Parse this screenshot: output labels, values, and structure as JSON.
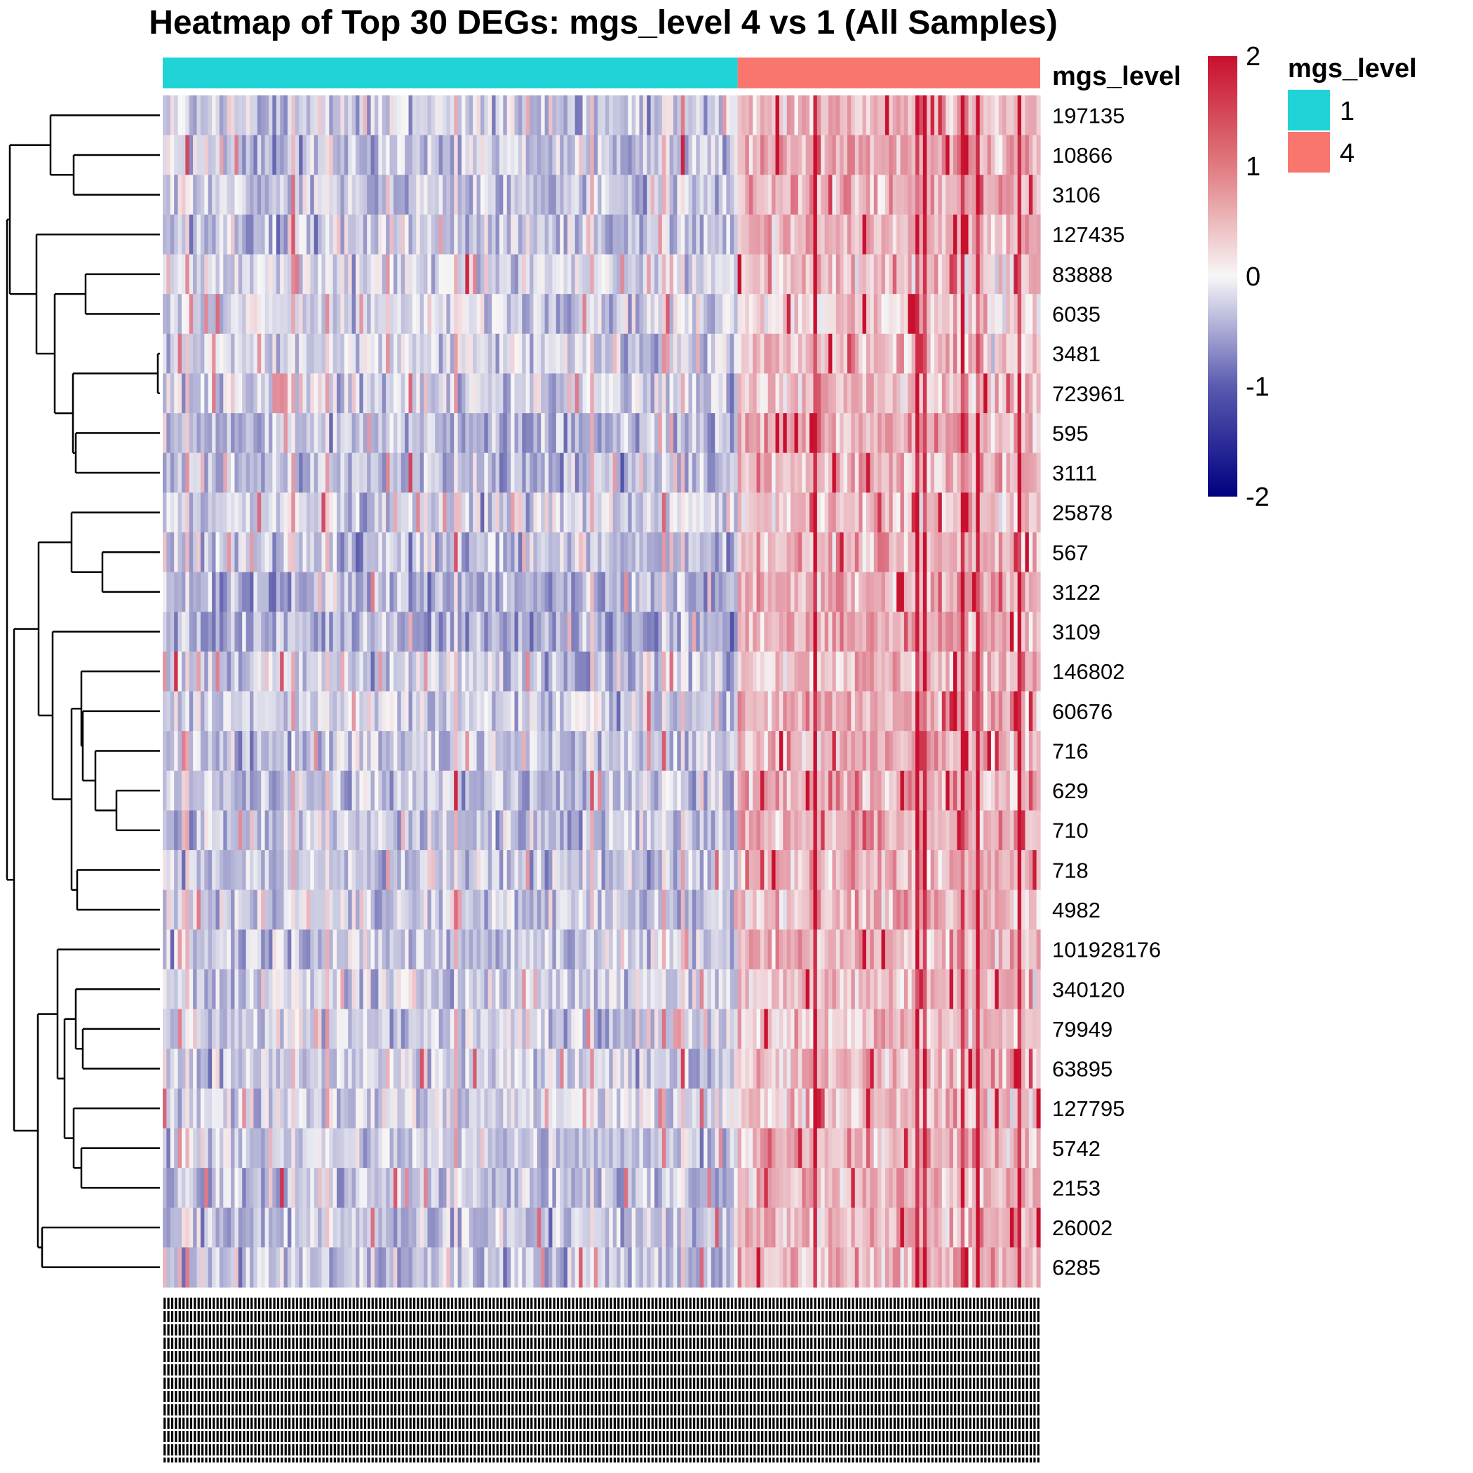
{
  "chart_data": {
    "type": "heatmap",
    "title": "Heatmap of Top 30 DEGs: mgs_level 4 vs 1 (All Samples)",
    "rows": [
      "197135",
      "10866",
      "3106",
      "127435",
      "83888",
      "6035",
      "3481",
      "723961",
      "595",
      "3111",
      "25878",
      "567",
      "3122",
      "3109",
      "146802",
      "60676",
      "716",
      "629",
      "710",
      "718",
      "4982",
      "101928176",
      "340120",
      "79949",
      "63895",
      "127795",
      "5742",
      "2153",
      "26002",
      "6285"
    ],
    "annotation": {
      "name": "mgs_level",
      "groups": [
        {
          "label": "1",
          "color": "#1FD3D6",
          "n_columns": 152
        },
        {
          "label": "4",
          "color": "#F8766D",
          "n_columns": 80
        }
      ]
    },
    "n_columns": 232,
    "column_labels_note": "",
    "color_scale": {
      "min": -2,
      "max": 2,
      "low_color": "#000080",
      "mid_color": "#F7F7F7",
      "high_color": "#C8102E",
      "ticks": [
        "2",
        "1",
        "0",
        "-1",
        "-2"
      ]
    },
    "row_dendrogram": true,
    "group_means": {
      "197135": [
        -0.35,
        0.55
      ],
      "10866": [
        -0.4,
        0.6
      ],
      "3106": [
        -0.4,
        0.55
      ],
      "127435": [
        -0.4,
        0.6
      ],
      "83888": [
        -0.2,
        0.4
      ],
      "6035": [
        -0.25,
        0.35
      ],
      "3481": [
        -0.3,
        0.45
      ],
      "723961": [
        -0.3,
        0.45
      ],
      "595": [
        -0.5,
        0.65
      ],
      "3111": [
        -0.45,
        0.55
      ],
      "25878": [
        -0.25,
        0.45
      ],
      "567": [
        -0.45,
        0.6
      ],
      "3122": [
        -0.55,
        0.65
      ],
      "3109": [
        -0.6,
        0.7
      ],
      "146802": [
        -0.35,
        0.55
      ],
      "60676": [
        -0.35,
        0.55
      ],
      "716": [
        -0.4,
        0.6
      ],
      "629": [
        -0.4,
        0.6
      ],
      "710": [
        -0.4,
        0.6
      ],
      "718": [
        -0.4,
        0.55
      ],
      "4982": [
        -0.35,
        0.55
      ],
      "101928176": [
        -0.35,
        0.55
      ],
      "340120": [
        -0.3,
        0.5
      ],
      "79949": [
        -0.3,
        0.5
      ],
      "63895": [
        -0.35,
        0.5
      ],
      "127795": [
        -0.25,
        0.45
      ],
      "5742": [
        -0.35,
        0.55
      ],
      "2153": [
        -0.4,
        0.55
      ],
      "26002": [
        -0.4,
        0.5
      ],
      "6285": [
        -0.45,
        0.55
      ]
    }
  },
  "legend": {
    "color_title": "",
    "annotation_title": "mgs_level",
    "annotation_items": [
      {
        "label": "1",
        "color": "#1FD3D6"
      },
      {
        "label": "4",
        "color": "#F8766D"
      }
    ]
  }
}
